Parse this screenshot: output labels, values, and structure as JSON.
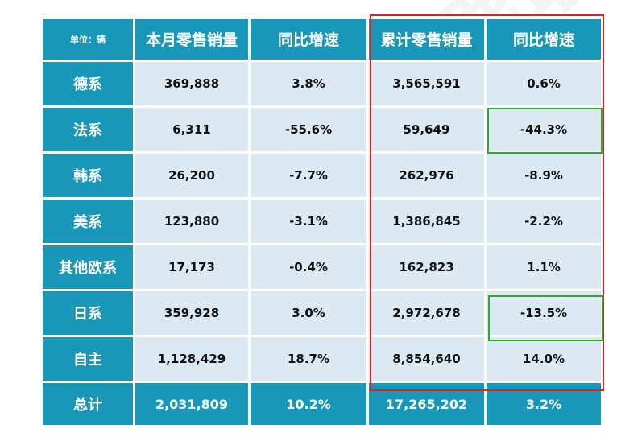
{
  "header": {
    "unit_label": "单位：辆",
    "monthly_sales": "本月零售销量",
    "monthly_yoy": "同比增速",
    "cumulative_sales": "累计零售销量",
    "cumulative_yoy": "同比增速"
  },
  "rows": [
    {
      "name": "德系",
      "monthly": "369,888",
      "monthly_yoy": "3.8%",
      "cumulative": "3,565,591",
      "cumulative_yoy": "0.6%"
    },
    {
      "name": "法系",
      "monthly": "6,311",
      "monthly_yoy": "-55.6%",
      "cumulative": "59,649",
      "cumulative_yoy": "-44.3%"
    },
    {
      "name": "韩系",
      "monthly": "26,200",
      "monthly_yoy": "-7.7%",
      "cumulative": "262,976",
      "cumulative_yoy": "-8.9%"
    },
    {
      "name": "美系",
      "monthly": "123,880",
      "monthly_yoy": "-3.1%",
      "cumulative": "1,386,845",
      "cumulative_yoy": "-2.2%"
    },
    {
      "name": "其他欧系",
      "monthly": "17,173",
      "monthly_yoy": "-0.4%",
      "cumulative": "162,823",
      "cumulative_yoy": "1.1%"
    },
    {
      "name": "日系",
      "monthly": "359,928",
      "monthly_yoy": "3.0%",
      "cumulative": "2,972,678",
      "cumulative_yoy": "-13.5%"
    },
    {
      "name": "自主",
      "monthly": "1,128,429",
      "monthly_yoy": "18.7%",
      "cumulative": "8,854,640",
      "cumulative_yoy": "14.0%"
    }
  ],
  "total": {
    "name": "总计",
    "monthly": "2,031,809",
    "monthly_yoy": "10.2%",
    "cumulative": "17,265,202",
    "cumulative_yoy": "3.2%"
  },
  "watermark_text": "CPCA乘联会",
  "colors": {
    "header_bg": "#1897b8",
    "cell_bg": "#dde9f2",
    "highlight_red": "#e02020",
    "highlight_green": "#2fa82f"
  }
}
